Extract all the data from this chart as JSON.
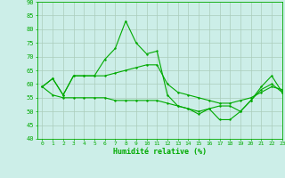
{
  "xlabel": "Humidité relative (%)",
  "xlim": [
    -0.5,
    23
  ],
  "ylim": [
    40,
    90
  ],
  "yticks": [
    40,
    45,
    50,
    55,
    60,
    65,
    70,
    75,
    80,
    85,
    90
  ],
  "xticks": [
    0,
    1,
    2,
    3,
    4,
    5,
    6,
    7,
    8,
    9,
    10,
    11,
    12,
    13,
    14,
    15,
    16,
    17,
    18,
    19,
    20,
    21,
    22,
    23
  ],
  "background_color": "#cceee8",
  "grid_color": "#aaccbb",
  "line_color": "#00aa00",
  "line1": [
    59,
    62,
    56,
    63,
    63,
    63,
    69,
    73,
    83,
    75,
    71,
    72,
    56,
    52,
    51,
    49,
    51,
    47,
    47,
    50,
    54,
    59,
    63,
    57
  ],
  "line2": [
    59,
    62,
    56,
    63,
    63,
    63,
    63,
    64,
    65,
    66,
    67,
    67,
    60,
    57,
    56,
    55,
    54,
    53,
    53,
    54,
    55,
    57,
    59,
    58
  ],
  "line3": [
    59,
    56,
    55,
    55,
    55,
    55,
    55,
    54,
    54,
    54,
    54,
    54,
    53,
    52,
    51,
    50,
    51,
    52,
    52,
    50,
    54,
    58,
    60,
    57
  ]
}
